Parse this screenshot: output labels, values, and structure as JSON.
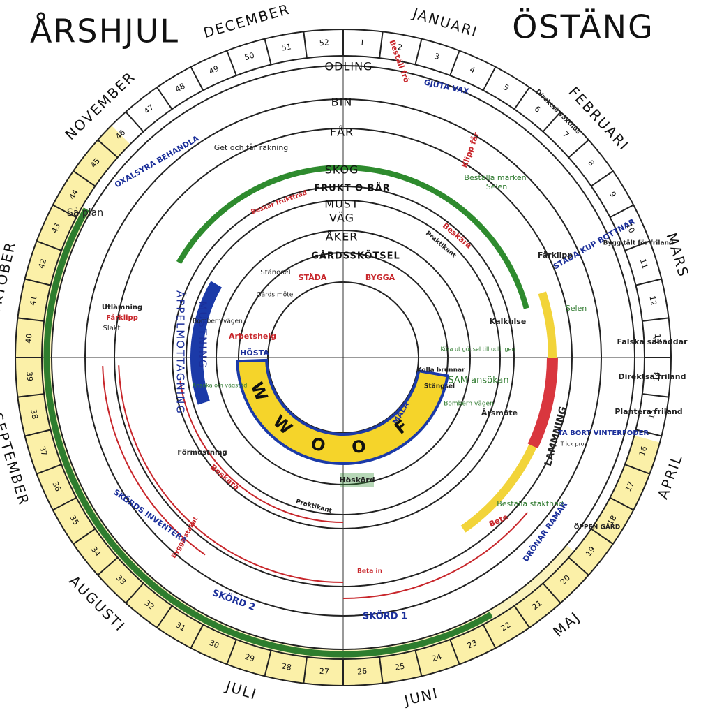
{
  "header": {
    "title_left": "ÅRSHJUL",
    "title_right": "ÖSTÄNG"
  },
  "months": [
    "JANUARI",
    "FEBRUARI",
    "MARS",
    "APRIL",
    "MAJ",
    "JUNI",
    "JULI",
    "AUGUSTI",
    "SEPTEMBER",
    "OKTOBER",
    "NOVEMBER",
    "DECEMBER"
  ],
  "weeks": [
    "1",
    "2",
    "3",
    "4",
    "5",
    "6",
    "7",
    "8",
    "9",
    "10",
    "11",
    "12",
    "13",
    "14",
    "15",
    "16",
    "17",
    "18",
    "19",
    "20",
    "21",
    "22",
    "23",
    "24",
    "25",
    "26",
    "27",
    "28",
    "29",
    "30",
    "31",
    "32",
    "33",
    "34",
    "35",
    "36",
    "37",
    "38",
    "39",
    "40",
    "41",
    "42",
    "43",
    "44",
    "45",
    "46",
    "47",
    "48",
    "49",
    "50",
    "51",
    "52"
  ],
  "rings": [
    "ODLING",
    "BIN",
    "FÅR",
    "SKOG",
    "FRUKT O BÄR",
    "MUST",
    "VÄG",
    "ÅKER",
    "GÅRDSSKÖTSEL"
  ],
  "activities": [
    "Beställ frö",
    "GJUTA VAX",
    "Direktsä växthus",
    "Klipp får",
    "Beställa märken",
    "Selen",
    "Get och får räkning",
    "OXALSYRA BEHANDLA",
    "Så plan",
    "Beskär fruktträd",
    "Beskära",
    "Praktikant",
    "STÄDA KUP BOTTNAR",
    "Bygg tält för friland",
    "Fårklipp",
    "Selen",
    "Kalkulse",
    "Falska såbäddar",
    "Direktsä friland",
    "Plantera friland",
    "TA BORT VINTERFODER",
    "LAMMNING",
    "Årsmöte",
    "SAM ansökan",
    "Bombern vägen",
    "Stängsel",
    "Kolla brunnar",
    "Köra ut gödsel till odlingen",
    "Stängsel",
    "STÄDA",
    "BYGGA",
    "Gårds möte",
    "Arbetshelg",
    "HÖSTA",
    "MÅLA",
    "ÄPPELMOTTAGNING",
    "MUSTNING",
    "Bombern vägen",
    "Utlämning",
    "Fårklipp",
    "Slakt",
    "Ansöka om vägstöd",
    "Förmustning",
    "Beskära",
    "Praktikant",
    "SKÖRDS INVENTERA",
    "Bygga staket",
    "Höskörd",
    "Beställa stakthäd",
    "Bete",
    "DRÖNAR RAMAR",
    "ÖPPEN GÅRD",
    "SKÖRD 2",
    "SKÖRD 1",
    "Beta in",
    "Trick prov"
  ],
  "wwoof": [
    "W",
    "W",
    "O",
    "O",
    "F"
  ]
}
